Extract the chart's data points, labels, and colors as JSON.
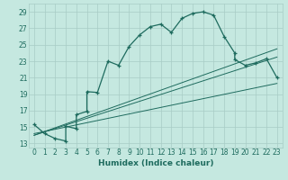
{
  "xlabel": "Humidex (Indice chaleur)",
  "bg_color": "#c5e8e0",
  "grid_color": "#a8ccc5",
  "line_color": "#1e6b5e",
  "xlim": [
    -0.5,
    23.5
  ],
  "ylim": [
    12.5,
    30.0
  ],
  "yticks": [
    13,
    15,
    17,
    19,
    21,
    23,
    25,
    27,
    29
  ],
  "xticks": [
    0,
    1,
    2,
    3,
    4,
    5,
    6,
    7,
    8,
    9,
    10,
    11,
    12,
    13,
    14,
    15,
    16,
    17,
    18,
    19,
    20,
    21,
    22,
    23
  ],
  "main_x": [
    0,
    1,
    2,
    3,
    3,
    4,
    4,
    5,
    5,
    6,
    7,
    8,
    9,
    10,
    11,
    12,
    13,
    14,
    15,
    16,
    17,
    18,
    19,
    19,
    20,
    21,
    22,
    23
  ],
  "main_y": [
    15.3,
    14.2,
    13.6,
    13.3,
    15.1,
    14.8,
    16.5,
    16.9,
    19.3,
    19.2,
    23.0,
    22.5,
    24.8,
    26.2,
    27.2,
    27.5,
    26.5,
    28.2,
    28.8,
    29.0,
    28.6,
    26.0,
    24.0,
    23.2,
    22.5,
    22.8,
    23.3,
    21.0
  ],
  "line1_x": [
    0,
    23
  ],
  "line1_y": [
    14.2,
    20.3
  ],
  "line2_x": [
    0,
    23
  ],
  "line2_y": [
    14.0,
    23.5
  ],
  "line3_x": [
    0,
    23
  ],
  "line3_y": [
    14.0,
    24.5
  ]
}
